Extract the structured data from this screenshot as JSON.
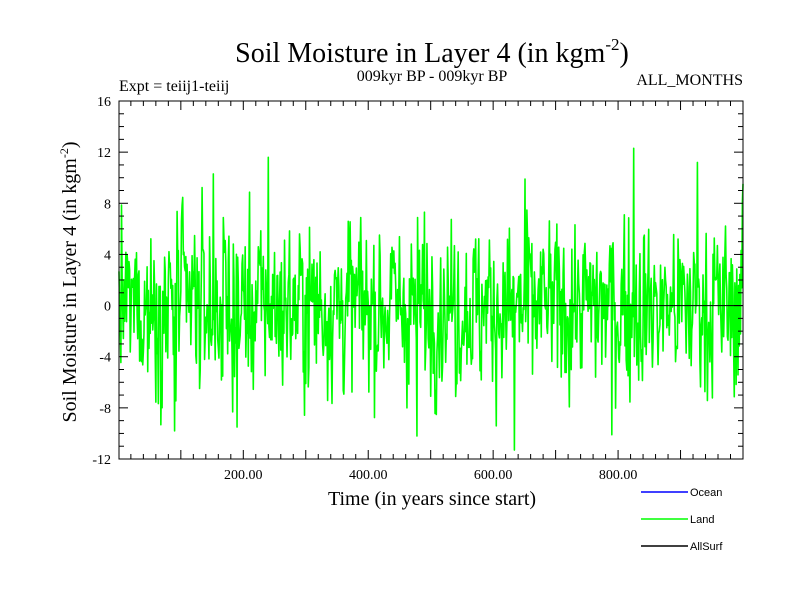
{
  "chart_data": {
    "type": "line",
    "title": "Soil Moisture in Layer 4 (in kgm",
    "title_sup": "-2",
    "title_close": ")",
    "subtitle_left": "Expt = teiij1-teiij",
    "subtitle_center": "009kyr BP - 009kyr BP",
    "subtitle_right": "ALL_MONTHS",
    "xlabel": "Time (in years since start)",
    "ylabel": "Soil Moisture in Layer 4 (in kgm",
    "ylabel_sup": "-2",
    "ylabel_close": ")",
    "xlim": [
      1,
      1000
    ],
    "ylim": [
      -12,
      16
    ],
    "x_ticks": [
      200,
      400,
      600,
      800
    ],
    "x_tick_labels": [
      "200.00",
      "400.00",
      "600.00",
      "800.00"
    ],
    "y_ticks": [
      -12,
      -8,
      -4,
      0,
      4,
      8,
      12,
      16
    ],
    "y_tick_labels": [
      "-12",
      "-8",
      "-4",
      "0",
      "4",
      "8",
      "12",
      "16"
    ],
    "zero_line": true,
    "series": [
      {
        "name": "Ocean",
        "color": "#0000ff",
        "values": []
      },
      {
        "name": "Land",
        "color": "#00ff00",
        "peaks": [
          {
            "x": 240,
            "y": 11.6
          },
          {
            "x": 825,
            "y": 12.3
          },
          {
            "x": 927,
            "y": 11.2
          },
          {
            "x": 152,
            "y": 10.3
          },
          {
            "x": 651,
            "y": 9.9
          },
          {
            "x": 999,
            "y": 8.1
          }
        ],
        "troughs": [
          {
            "x": 634,
            "y": -11.3
          },
          {
            "x": 478,
            "y": -10.2
          },
          {
            "x": 790,
            "y": -10.1
          },
          {
            "x": 90,
            "y": -9.8
          },
          {
            "x": 190,
            "y": -9.5
          }
        ],
        "summary": {
          "n_points": 1000,
          "mean": 0,
          "std": 3.3
        }
      },
      {
        "name": "AllSurf",
        "color": "#000000",
        "values": []
      }
    ],
    "legend": [
      {
        "name": "Ocean",
        "color": "#0000ff"
      },
      {
        "name": "Land",
        "color": "#00ff00"
      },
      {
        "name": "AllSurf",
        "color": "#000000"
      }
    ],
    "legend_placement": "bottom-right"
  }
}
